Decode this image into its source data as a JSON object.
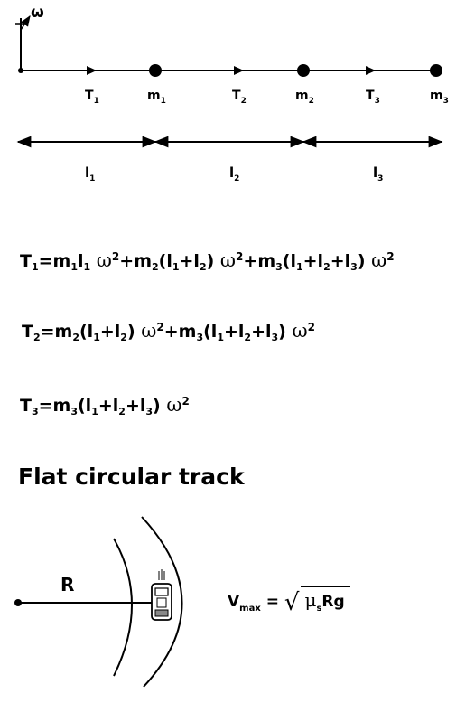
{
  "diagram": {
    "omega_symbol": "ω",
    "tensions": [
      {
        "letter": "T",
        "sub": "1"
      },
      {
        "letter": "T",
        "sub": "2"
      },
      {
        "letter": "T",
        "sub": "3"
      }
    ],
    "masses": [
      {
        "letter": "m",
        "sub": "1"
      },
      {
        "letter": "m",
        "sub": "2"
      },
      {
        "letter": "m",
        "sub": "3"
      }
    ],
    "lengths": [
      {
        "letter": "l",
        "sub": "1"
      },
      {
        "letter": "l",
        "sub": "2"
      },
      {
        "letter": "l",
        "sub": "3"
      }
    ]
  },
  "equations": {
    "eq1": {
      "lhs": "T",
      "lhs_sub": "1",
      "t1": "=m",
      "t1s": "1",
      "t2": "l",
      "t2s": "1",
      "t3": "+m",
      "t3s": "2",
      "t4": "(l",
      "t4s": "1",
      "t5": "+l",
      "t5s": "2",
      "t6": ")",
      "t7": "+m",
      "t7s": "3",
      "t8": "(l",
      "t8s": "1",
      "t9": "+l",
      "t9s": "2",
      "t10": "+l",
      "t10s": "3",
      "t11": ")",
      "omega": "ω",
      "power": "2"
    },
    "eq2": {
      "lhs": "T",
      "lhs_sub": "2",
      "t1": "=m",
      "t1s": "2",
      "t2": "(l",
      "t2s": "1",
      "t3": "+l",
      "t3s": "2",
      "t4": ")",
      "t5": "+m",
      "t5s": "3",
      "t6": "(l",
      "t6s": "1",
      "t7": "+l",
      "t7s": "2",
      "t8": "+l",
      "t8s": "3",
      "t9": ")",
      "omega": "ω",
      "power": "2"
    },
    "eq3": {
      "lhs": "T",
      "lhs_sub": "3",
      "t1": "=m",
      "t1s": "3",
      "t2": "(l",
      "t2s": "1",
      "t3": "+l",
      "t3s": "2",
      "t4": "+l",
      "t4s": "3",
      "t5": ")",
      "omega": "ω",
      "power": "2"
    }
  },
  "section_title": "Flat circular track",
  "track": {
    "radius_label": "R",
    "vmax": {
      "v": "V",
      "sub": "max",
      "equals": "=",
      "mu": "μ",
      "mu_sub": "s",
      "rest": "Rg"
    }
  }
}
